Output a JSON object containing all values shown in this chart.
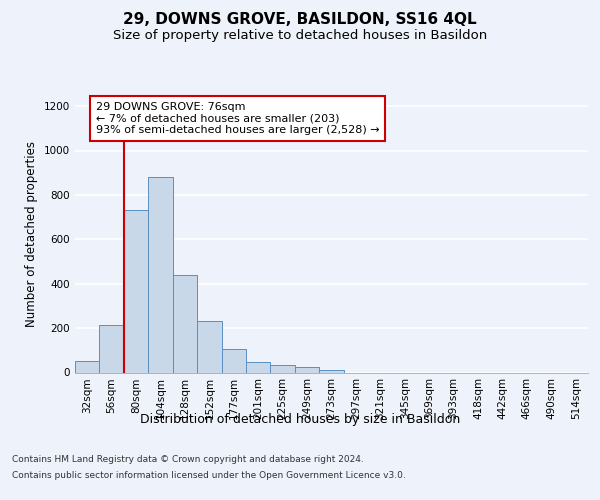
{
  "title": "29, DOWNS GROVE, BASILDON, SS16 4QL",
  "subtitle": "Size of property relative to detached houses in Basildon",
  "xlabel": "Distribution of detached houses by size in Basildon",
  "ylabel": "Number of detached properties",
  "categories": [
    "32sqm",
    "56sqm",
    "80sqm",
    "104sqm",
    "128sqm",
    "152sqm",
    "177sqm",
    "201sqm",
    "225sqm",
    "249sqm",
    "273sqm",
    "297sqm",
    "321sqm",
    "345sqm",
    "369sqm",
    "393sqm",
    "418sqm",
    "442sqm",
    "466sqm",
    "490sqm",
    "514sqm"
  ],
  "values": [
    50,
    215,
    730,
    880,
    440,
    230,
    108,
    47,
    35,
    25,
    13,
    0,
    0,
    0,
    0,
    0,
    0,
    0,
    0,
    0,
    0
  ],
  "bar_color": "#c8d8e8",
  "bar_edge_color": "#5a8fc3",
  "vline_color": "#cc0000",
  "annotation_text": "29 DOWNS GROVE: 76sqm\n← 7% of detached houses are smaller (203)\n93% of semi-detached houses are larger (2,528) →",
  "annotation_box_color": "#ffffff",
  "annotation_box_edge_color": "#cc0000",
  "ylim": [
    0,
    1250
  ],
  "yticks": [
    0,
    200,
    400,
    600,
    800,
    1000,
    1200
  ],
  "bg_color": "#eef2fb",
  "axes_bg_color": "#eef2fb",
  "grid_color": "#ffffff",
  "footer_line1": "Contains HM Land Registry data © Crown copyright and database right 2024.",
  "footer_line2": "Contains public sector information licensed under the Open Government Licence v3.0.",
  "title_fontsize": 11,
  "subtitle_fontsize": 9.5,
  "xlabel_fontsize": 9,
  "ylabel_fontsize": 8.5,
  "tick_fontsize": 7.5,
  "footer_fontsize": 6.5,
  "annotation_fontsize": 8
}
